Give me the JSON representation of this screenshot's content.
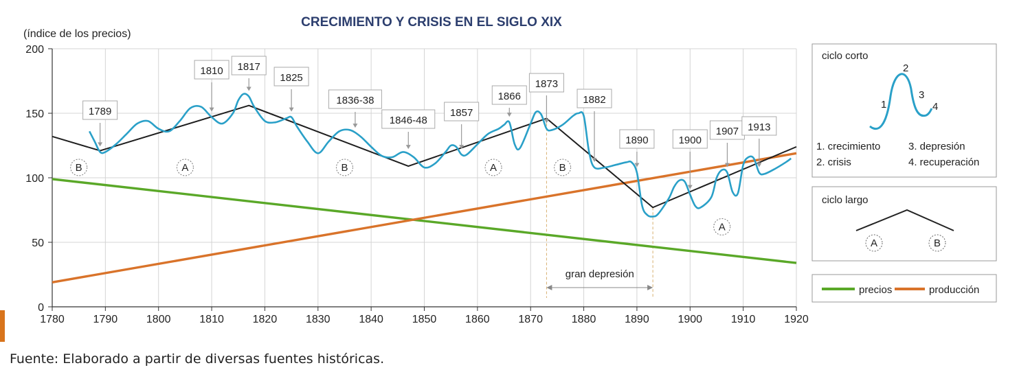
{
  "chart_data": {
    "type": "line",
    "title": "CRECIMIENTO Y CRISIS EN EL SIGLO XIX",
    "ylabel": "(índice de los precios)",
    "xlabel": "",
    "xlim": [
      1780,
      1920
    ],
    "ylim": [
      0,
      200
    ],
    "x_ticks": [
      1780,
      1790,
      1800,
      1810,
      1820,
      1830,
      1840,
      1850,
      1860,
      1870,
      1880,
      1890,
      1900,
      1910,
      1920
    ],
    "y_ticks": [
      0,
      50,
      100,
      150,
      200
    ],
    "grid": true,
    "series": [
      {
        "name": "precios",
        "color": "#5aa828",
        "x": [
          1780,
          1920
        ],
        "y": [
          99,
          34
        ]
      },
      {
        "name": "producción",
        "color": "#d9732a",
        "x": [
          1780,
          1920
        ],
        "y": [
          19,
          119
        ]
      },
      {
        "name": "",
        "color": "#1e1e1e",
        "x": [
          1780,
          1789,
          1817,
          1847,
          1873,
          1893,
          1920
        ],
        "y": [
          132,
          121,
          156,
          109,
          146,
          77,
          124
        ]
      },
      {
        "name": "",
        "color": "#2aa0c8",
        "x": [
          1787,
          1788,
          1789,
          1790,
          1792,
          1794,
          1796,
          1798,
          1800,
          1802,
          1804,
          1806,
          1808,
          1810,
          1812,
          1814,
          1815,
          1816,
          1817,
          1818,
          1820,
          1822,
          1824,
          1825,
          1826,
          1828,
          1830,
          1832,
          1834,
          1836,
          1838,
          1840,
          1842,
          1844,
          1846,
          1848,
          1850,
          1852,
          1854,
          1855,
          1856,
          1857,
          1858,
          1860,
          1862,
          1864,
          1865,
          1866,
          1867,
          1868,
          1870,
          1871,
          1872,
          1873,
          1874,
          1876,
          1878,
          1879,
          1880,
          1881,
          1882,
          1884,
          1886,
          1888,
          1889,
          1890,
          1891,
          1892,
          1893,
          1894,
          1896,
          1897,
          1898,
          1899,
          1900,
          1901,
          1902,
          1904,
          1905,
          1906,
          1907,
          1908,
          1909,
          1910,
          1911,
          1912,
          1913,
          1914,
          1916,
          1918,
          1919
        ],
        "y": [
          136,
          128,
          120,
          120,
          126,
          134,
          142,
          144,
          138,
          136,
          144,
          154,
          155,
          147,
          142,
          150,
          160,
          165,
          163,
          155,
          144,
          143,
          146,
          147,
          140,
          128,
          119,
          128,
          136,
          137,
          132,
          124,
          117,
          116,
          120,
          116,
          108,
          111,
          120,
          125,
          124,
          118,
          118,
          126,
          134,
          138,
          141,
          143,
          126,
          123,
          142,
          151,
          149,
          138,
          137,
          141,
          148,
          150,
          148,
          120,
          108,
          108,
          110,
          112,
          112,
          104,
          78,
          71,
          70,
          72,
          84,
          93,
          98,
          97,
          87,
          78,
          77,
          85,
          100,
          106,
          104,
          89,
          88,
          110,
          116,
          115,
          104,
          103,
          107,
          112,
          115
        ]
      }
    ],
    "annotations": [
      {
        "text": "1789",
        "x": 1789
      },
      {
        "text": "1810",
        "x": 1810
      },
      {
        "text": "1817",
        "x": 1817
      },
      {
        "text": "1825",
        "x": 1825
      },
      {
        "text": "1836-38",
        "x": 1837
      },
      {
        "text": "1846-48",
        "x": 1847
      },
      {
        "text": "1857",
        "x": 1857
      },
      {
        "text": "1866",
        "x": 1866
      },
      {
        "text": "1873",
        "x": 1873
      },
      {
        "text": "1882",
        "x": 1882
      },
      {
        "text": "1890",
        "x": 1890
      },
      {
        "text": "1900",
        "x": 1900
      },
      {
        "text": "1907",
        "x": 1907
      },
      {
        "text": "1913",
        "x": 1913
      }
    ],
    "phases": [
      {
        "text": "B",
        "x": 1785,
        "y": 108
      },
      {
        "text": "A",
        "x": 1805,
        "y": 108
      },
      {
        "text": "B",
        "x": 1835,
        "y": 108
      },
      {
        "text": "A",
        "x": 1863,
        "y": 108
      },
      {
        "text": "B",
        "x": 1876,
        "y": 108
      },
      {
        "text": "A",
        "x": 1906,
        "y": 62
      }
    ],
    "gran_depresion": {
      "label": "gran depresión",
      "x_start": 1873,
      "x_end": 1893
    },
    "legend": {
      "placement": "bottom-right",
      "entries": [
        "precios",
        "producción"
      ]
    }
  },
  "ciclo_corto": {
    "title": "ciclo corto",
    "points": [
      "1",
      "2",
      "3",
      "4"
    ],
    "items": [
      "1. crecimiento",
      "2. crisis",
      "3. depresión",
      "4. recuperación"
    ]
  },
  "ciclo_largo": {
    "title": "ciclo largo",
    "phases": [
      "A",
      "B"
    ]
  },
  "source": "Fuente: Elaborado a partir de diversas fuentes históricas."
}
